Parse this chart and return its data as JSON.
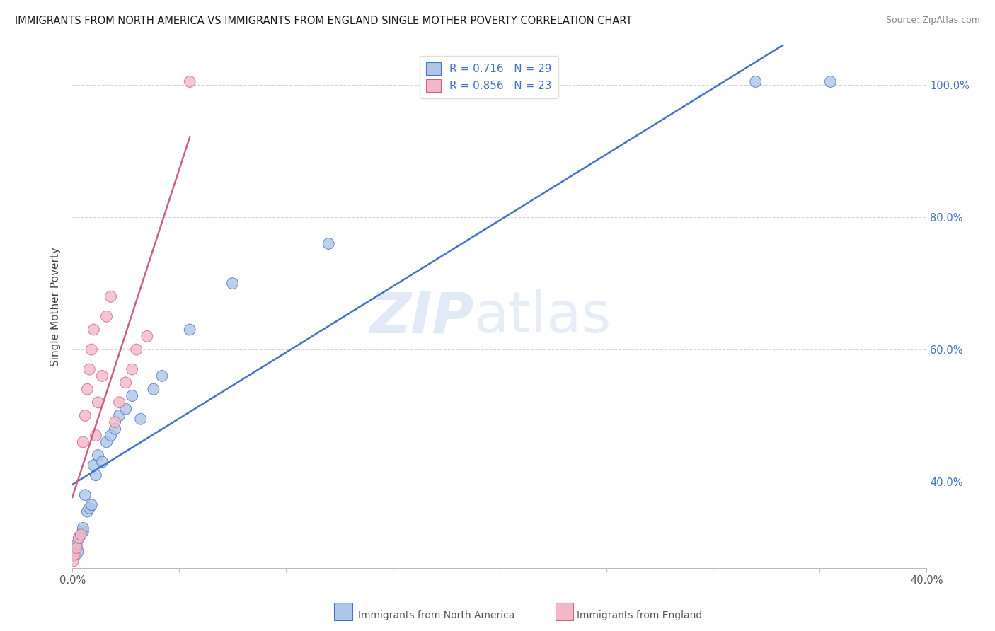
{
  "title": "IMMIGRANTS FROM NORTH AMERICA VS IMMIGRANTS FROM ENGLAND SINGLE MOTHER POVERTY CORRELATION CHART",
  "source": "Source: ZipAtlas.com",
  "ylabel": "Single Mother Poverty",
  "x_label_na": "Immigrants from North America",
  "x_label_eng": "Immigrants from England",
  "watermark_zip": "ZIP",
  "watermark_atlas": "atlas",
  "r_na": "0.716",
  "n_na": "29",
  "r_eng": "0.856",
  "n_eng": "23",
  "color_na": "#adc6e8",
  "color_eng": "#f2b8c8",
  "line_color_na": "#4472c4",
  "line_color_eng": "#d06080",
  "xlim": [
    0.0,
    0.4
  ],
  "ylim": [
    0.27,
    1.06
  ],
  "xticks": [
    0.0,
    0.05,
    0.1,
    0.15,
    0.2,
    0.25,
    0.3,
    0.35,
    0.4
  ],
  "yticks": [
    0.4,
    0.6,
    0.8,
    1.0
  ],
  "na_x": [
    0.0005,
    0.001,
    0.002,
    0.003,
    0.004,
    0.005,
    0.005,
    0.006,
    0.007,
    0.008,
    0.009,
    0.01,
    0.011,
    0.012,
    0.014,
    0.016,
    0.018,
    0.02,
    0.022,
    0.025,
    0.028,
    0.032,
    0.038,
    0.042,
    0.055,
    0.075,
    0.12,
    0.32,
    0.355
  ],
  "na_y": [
    0.295,
    0.3,
    0.305,
    0.315,
    0.32,
    0.325,
    0.33,
    0.38,
    0.355,
    0.36,
    0.365,
    0.425,
    0.41,
    0.44,
    0.43,
    0.46,
    0.47,
    0.48,
    0.5,
    0.51,
    0.53,
    0.495,
    0.54,
    0.56,
    0.63,
    0.7,
    0.76,
    1.005,
    1.005
  ],
  "na_sizes": [
    400,
    130,
    130,
    130,
    130,
    130,
    130,
    130,
    130,
    130,
    130,
    130,
    130,
    130,
    130,
    130,
    130,
    130,
    130,
    130,
    130,
    130,
    130,
    130,
    130,
    130,
    130,
    130,
    130
  ],
  "eng_x": [
    0.0003,
    0.001,
    0.002,
    0.003,
    0.004,
    0.005,
    0.006,
    0.007,
    0.008,
    0.009,
    0.01,
    0.011,
    0.012,
    0.014,
    0.016,
    0.018,
    0.02,
    0.022,
    0.025,
    0.028,
    0.03,
    0.035,
    0.055
  ],
  "eng_y": [
    0.28,
    0.29,
    0.3,
    0.315,
    0.32,
    0.46,
    0.5,
    0.54,
    0.57,
    0.6,
    0.63,
    0.47,
    0.52,
    0.56,
    0.65,
    0.68,
    0.49,
    0.52,
    0.55,
    0.57,
    0.6,
    0.62,
    1.005
  ],
  "eng_sizes": [
    130,
    130,
    130,
    130,
    130,
    130,
    130,
    130,
    130,
    130,
    130,
    130,
    130,
    130,
    130,
    130,
    130,
    130,
    130,
    130,
    130,
    130,
    130
  ]
}
